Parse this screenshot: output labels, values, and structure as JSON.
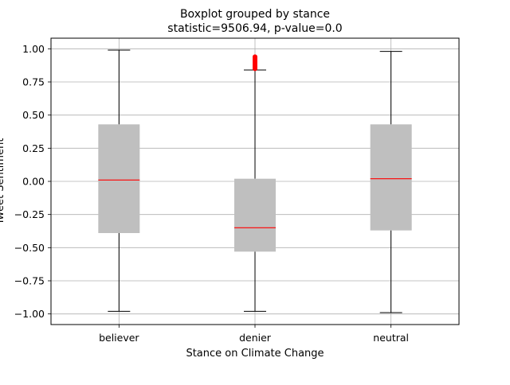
{
  "chart_data": {
    "type": "box",
    "title": "Boxplot grouped by stance",
    "subtitle": "statistic=9506.94, p-value=0.0",
    "xlabel": "Stance on Climate Change",
    "ylabel": "Tweet Sentiment",
    "ylim": [
      -1.08,
      1.08
    ],
    "yticks": [
      1.0,
      0.75,
      0.5,
      0.25,
      0.0,
      -0.25,
      -0.5,
      -0.75,
      -1.0
    ],
    "ytick_labels": [
      "1.00",
      "0.75",
      "0.50",
      "0.25",
      "0.00",
      "−0.25",
      "−0.50",
      "−0.75",
      "−1.00"
    ],
    "grid": true,
    "categories": [
      "believer",
      "denier",
      "neutral"
    ],
    "boxes": [
      {
        "category": "believer",
        "whisker_low": -0.98,
        "q1": -0.39,
        "median": 0.01,
        "q3": 0.43,
        "whisker_high": 0.99,
        "outliers": []
      },
      {
        "category": "denier",
        "whisker_low": -0.98,
        "q1": -0.53,
        "median": -0.35,
        "q3": 0.02,
        "whisker_high": 0.84,
        "outliers": [
          0.85,
          0.86,
          0.87,
          0.88,
          0.89,
          0.9,
          0.91,
          0.92,
          0.93,
          0.94
        ]
      },
      {
        "category": "neutral",
        "whisker_low": -0.99,
        "q1": -0.37,
        "median": 0.02,
        "q3": 0.43,
        "whisker_high": 0.98,
        "outliers": []
      }
    ],
    "colors": {
      "box_fill": "#bfbfbf",
      "median": "#ff0000",
      "whisker": "#000000",
      "outlier": "#ff0000",
      "grid": "#b0b0b0"
    }
  }
}
